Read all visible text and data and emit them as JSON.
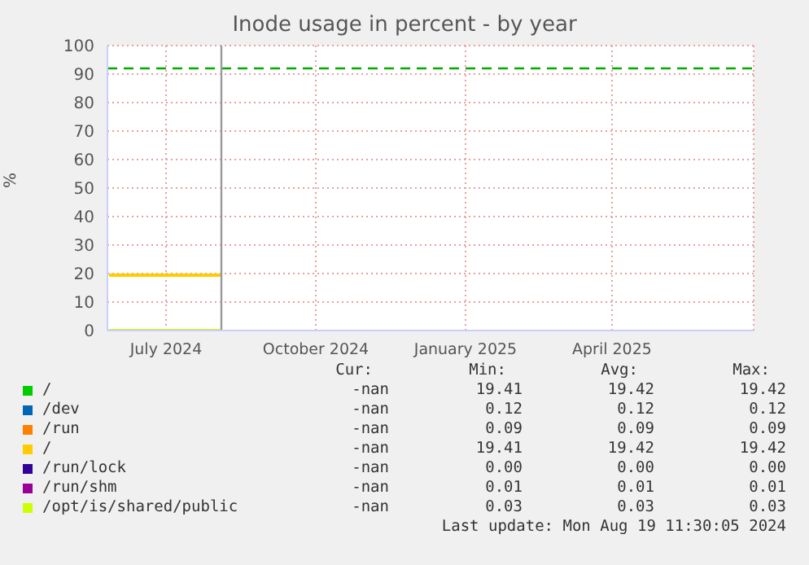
{
  "chart_data": {
    "type": "line",
    "title": "Inode usage in percent - by year",
    "ylabel": "%",
    "x": [
      "2024-06-11",
      "2024-08-19"
    ],
    "series": [
      {
        "name": "/",
        "color": "#00cc00",
        "values": [
          null,
          null
        ]
      },
      {
        "name": "/dev",
        "color": "#0066b3",
        "values": [
          null,
          null
        ]
      },
      {
        "name": "/run",
        "color": "#ff8000",
        "values": [
          null,
          null
        ]
      },
      {
        "name": "/",
        "color": "#ffcc00",
        "values": [
          19.4,
          19.4
        ]
      },
      {
        "name": "/run/lock",
        "color": "#330099",
        "values": [
          null,
          null
        ]
      },
      {
        "name": "/run/shm",
        "color": "#990099",
        "values": [
          null,
          null
        ]
      },
      {
        "name": "/opt/is/shared/public",
        "color": "#ccff00",
        "values": [
          0,
          0
        ]
      }
    ],
    "xlim": [
      "2024-06-10",
      "2025-07-12"
    ],
    "xticks": [
      {
        "value": "2024-07-16",
        "label": "July 2024"
      },
      {
        "value": "2024-10-16",
        "label": "October 2024"
      },
      {
        "value": "2025-01-16",
        "label": "January 2025"
      },
      {
        "value": "2025-04-16",
        "label": "April 2025"
      }
    ],
    "ylim": [
      0,
      100
    ],
    "yticks": [
      0,
      10,
      20,
      30,
      40,
      50,
      60,
      70,
      80,
      90,
      100
    ],
    "ref_lines": [
      {
        "axis": "y",
        "value": 92,
        "color": "#00aa00",
        "line_style": "dashed"
      },
      {
        "axis": "x",
        "value": "2024-08-19",
        "color": "#999999"
      }
    ],
    "grid": true,
    "legend": "bottom",
    "annotations": [
      "Cur:",
      "Min:",
      "Avg:",
      "Max:",
      "-nan",
      "19.41",
      "19.42",
      "19.42",
      "-nan",
      "0.12",
      "0.12",
      "0.12",
      "-nan",
      "0.09",
      "0.09",
      "0.09",
      "-nan",
      "19.41",
      "19.42",
      "19.42",
      "-nan",
      "0.00",
      "0.00",
      "0.00",
      "-nan",
      "0.01",
      "0.01",
      "0.01",
      "-nan",
      "0.03",
      "0.03",
      "0.03",
      "Last update: Mon Aug 19 11:30:05 2024"
    ]
  }
}
